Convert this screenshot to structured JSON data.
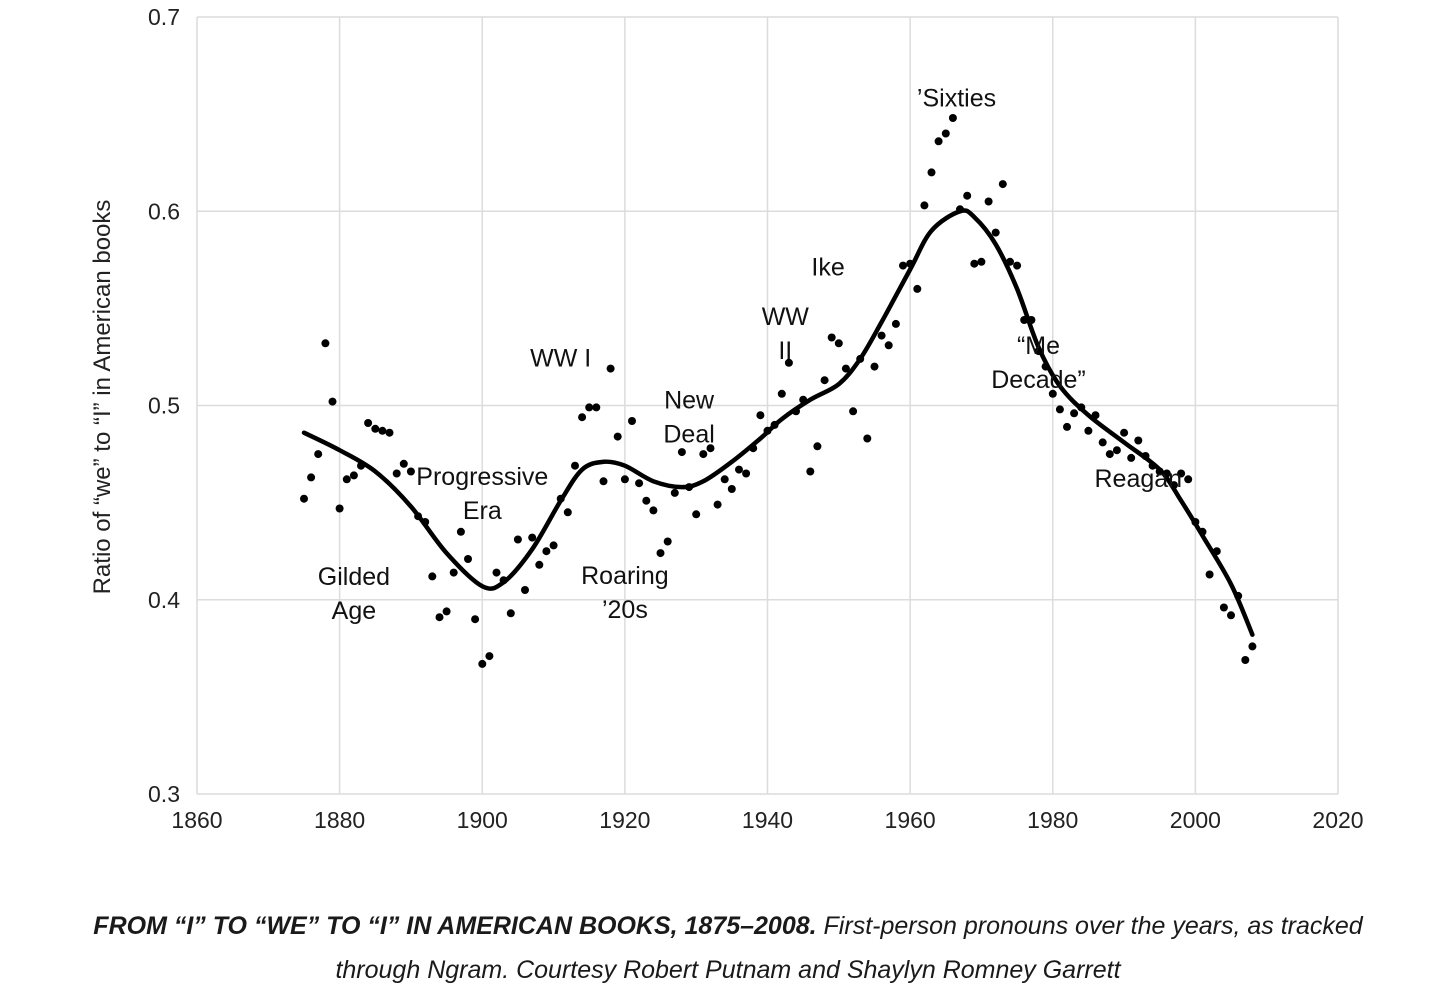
{
  "chart_data": {
    "type": "scatter",
    "title": "",
    "xlabel": "",
    "ylabel": "Ratio of “we” to “I” in American books",
    "xlim": [
      1860,
      2020
    ],
    "ylim": [
      0.3,
      0.7
    ],
    "xticks": [
      1860,
      1880,
      1900,
      1920,
      1940,
      1960,
      1980,
      2000,
      2020
    ],
    "yticks": [
      0.3,
      0.4,
      0.5,
      0.6,
      0.7
    ],
    "ytick_labels": [
      "0.3",
      "0.4",
      "0.5",
      "0.6",
      "0.7"
    ],
    "grid": true,
    "series": [
      {
        "name": "yearly ratio",
        "kind": "scatter",
        "points": [
          [
            1875,
            0.452
          ],
          [
            1876,
            0.463
          ],
          [
            1877,
            0.475
          ],
          [
            1878,
            0.532
          ],
          [
            1879,
            0.502
          ],
          [
            1880,
            0.447
          ],
          [
            1881,
            0.462
          ],
          [
            1882,
            0.464
          ],
          [
            1883,
            0.469
          ],
          [
            1884,
            0.491
          ],
          [
            1885,
            0.488
          ],
          [
            1886,
            0.487
          ],
          [
            1887,
            0.486
          ],
          [
            1888,
            0.465
          ],
          [
            1889,
            0.47
          ],
          [
            1890,
            0.466
          ],
          [
            1891,
            0.443
          ],
          [
            1892,
            0.44
          ],
          [
            1893,
            0.412
          ],
          [
            1894,
            0.391
          ],
          [
            1895,
            0.394
          ],
          [
            1896,
            0.414
          ],
          [
            1897,
            0.435
          ],
          [
            1898,
            0.421
          ],
          [
            1899,
            0.39
          ],
          [
            1900,
            0.367
          ],
          [
            1901,
            0.371
          ],
          [
            1902,
            0.414
          ],
          [
            1903,
            0.41
          ],
          [
            1904,
            0.393
          ],
          [
            1905,
            0.431
          ],
          [
            1906,
            0.405
          ],
          [
            1907,
            0.432
          ],
          [
            1908,
            0.418
          ],
          [
            1909,
            0.425
          ],
          [
            1910,
            0.428
          ],
          [
            1911,
            0.452
          ],
          [
            1912,
            0.445
          ],
          [
            1913,
            0.469
          ],
          [
            1914,
            0.494
          ],
          [
            1915,
            0.499
          ],
          [
            1916,
            0.499
          ],
          [
            1917,
            0.461
          ],
          [
            1918,
            0.519
          ],
          [
            1919,
            0.484
          ],
          [
            1920,
            0.462
          ],
          [
            1921,
            0.492
          ],
          [
            1922,
            0.46
          ],
          [
            1923,
            0.451
          ],
          [
            1924,
            0.446
          ],
          [
            1925,
            0.424
          ],
          [
            1926,
            0.43
          ],
          [
            1927,
            0.455
          ],
          [
            1928,
            0.476
          ],
          [
            1929,
            0.458
          ],
          [
            1930,
            0.444
          ],
          [
            1931,
            0.475
          ],
          [
            1932,
            0.478
          ],
          [
            1933,
            0.449
          ],
          [
            1934,
            0.462
          ],
          [
            1935,
            0.457
          ],
          [
            1936,
            0.467
          ],
          [
            1937,
            0.465
          ],
          [
            1938,
            0.478
          ],
          [
            1939,
            0.495
          ],
          [
            1940,
            0.487
          ],
          [
            1941,
            0.49
          ],
          [
            1942,
            0.506
          ],
          [
            1943,
            0.522
          ],
          [
            1944,
            0.497
          ],
          [
            1945,
            0.503
          ],
          [
            1946,
            0.466
          ],
          [
            1947,
            0.479
          ],
          [
            1948,
            0.513
          ],
          [
            1949,
            0.535
          ],
          [
            1950,
            0.532
          ],
          [
            1951,
            0.519
          ],
          [
            1952,
            0.497
          ],
          [
            1953,
            0.524
          ],
          [
            1954,
            0.483
          ],
          [
            1955,
            0.52
          ],
          [
            1956,
            0.536
          ],
          [
            1957,
            0.531
          ],
          [
            1958,
            0.542
          ],
          [
            1959,
            0.572
          ],
          [
            1960,
            0.573
          ],
          [
            1961,
            0.56
          ],
          [
            1962,
            0.603
          ],
          [
            1963,
            0.62
          ],
          [
            1964,
            0.636
          ],
          [
            1965,
            0.64
          ],
          [
            1966,
            0.648
          ],
          [
            1967,
            0.601
          ],
          [
            1968,
            0.608
          ],
          [
            1969,
            0.573
          ],
          [
            1970,
            0.574
          ],
          [
            1971,
            0.605
          ],
          [
            1972,
            0.589
          ],
          [
            1973,
            0.614
          ],
          [
            1974,
            0.574
          ],
          [
            1975,
            0.572
          ],
          [
            1976,
            0.544
          ],
          [
            1977,
            0.544
          ],
          [
            1978,
            0.528
          ],
          [
            1979,
            0.52
          ],
          [
            1980,
            0.506
          ],
          [
            1981,
            0.498
          ],
          [
            1982,
            0.489
          ],
          [
            1983,
            0.496
          ],
          [
            1984,
            0.499
          ],
          [
            1985,
            0.487
          ],
          [
            1986,
            0.495
          ],
          [
            1987,
            0.481
          ],
          [
            1988,
            0.475
          ],
          [
            1989,
            0.477
          ],
          [
            1990,
            0.486
          ],
          [
            1991,
            0.473
          ],
          [
            1992,
            0.482
          ],
          [
            1993,
            0.474
          ],
          [
            1994,
            0.469
          ],
          [
            1995,
            0.466
          ],
          [
            1996,
            0.465
          ],
          [
            1997,
            0.459
          ],
          [
            1998,
            0.465
          ],
          [
            1999,
            0.462
          ],
          [
            2000,
            0.44
          ],
          [
            2001,
            0.435
          ],
          [
            2002,
            0.413
          ],
          [
            2003,
            0.425
          ],
          [
            2004,
            0.396
          ],
          [
            2005,
            0.392
          ],
          [
            2006,
            0.402
          ],
          [
            2007,
            0.369
          ],
          [
            2008,
            0.376
          ]
        ]
      },
      {
        "name": "smoothed trend",
        "kind": "line",
        "points": [
          [
            1875,
            0.486
          ],
          [
            1880,
            0.477
          ],
          [
            1885,
            0.466
          ],
          [
            1890,
            0.448
          ],
          [
            1895,
            0.424
          ],
          [
            1900,
            0.407
          ],
          [
            1903,
            0.409
          ],
          [
            1907,
            0.426
          ],
          [
            1911,
            0.451
          ],
          [
            1914,
            0.467
          ],
          [
            1917,
            0.471
          ],
          [
            1920,
            0.469
          ],
          [
            1924,
            0.461
          ],
          [
            1928,
            0.458
          ],
          [
            1931,
            0.461
          ],
          [
            1935,
            0.471
          ],
          [
            1939,
            0.483
          ],
          [
            1942,
            0.493
          ],
          [
            1946,
            0.503
          ],
          [
            1950,
            0.511
          ],
          [
            1953,
            0.524
          ],
          [
            1956,
            0.543
          ],
          [
            1960,
            0.57
          ],
          [
            1963,
            0.59
          ],
          [
            1967,
            0.6
          ],
          [
            1969,
            0.597
          ],
          [
            1972,
            0.583
          ],
          [
            1975,
            0.56
          ],
          [
            1978,
            0.53
          ],
          [
            1981,
            0.51
          ],
          [
            1985,
            0.495
          ],
          [
            1990,
            0.481
          ],
          [
            1995,
            0.467
          ],
          [
            1998,
            0.451
          ],
          [
            2001,
            0.433
          ],
          [
            2005,
            0.408
          ],
          [
            2008,
            0.382
          ]
        ]
      }
    ],
    "annotations": [
      {
        "x": 1882,
        "y": 0.4075,
        "lines": [
          "Gilded",
          "Age"
        ]
      },
      {
        "x": 1900,
        "y": 0.459,
        "lines": [
          "Progressive",
          "Era"
        ]
      },
      {
        "x": 1911,
        "y": 0.52,
        "lines": [
          "WW I"
        ]
      },
      {
        "x": 1920,
        "y": 0.408,
        "lines": [
          "Roaring",
          "’20s"
        ]
      },
      {
        "x": 1929,
        "y": 0.4985,
        "lines": [
          "New",
          "Deal"
        ]
      },
      {
        "x": 1942.5,
        "y": 0.5415,
        "lines": [
          "WW",
          "II"
        ]
      },
      {
        "x": 1948.5,
        "y": 0.567,
        "lines": [
          "Ike"
        ]
      },
      {
        "x": 1966.5,
        "y": 0.654,
        "lines": [
          "’Sixties"
        ]
      },
      {
        "x": 1978,
        "y": 0.5265,
        "lines": [
          "“Me",
          "Decade”"
        ]
      },
      {
        "x": 1992,
        "y": 0.458,
        "lines": [
          "Reagan"
        ]
      }
    ]
  },
  "caption": {
    "bold": "FROM “I” TO “WE” TO “I” IN AMERICAN BOOKS, 1875–2008.",
    "text": " First-person pronouns over the years, as tracked",
    "line2": "through Ngram. Courtesy Robert Putnam and Shaylyn Romney Garrett"
  }
}
